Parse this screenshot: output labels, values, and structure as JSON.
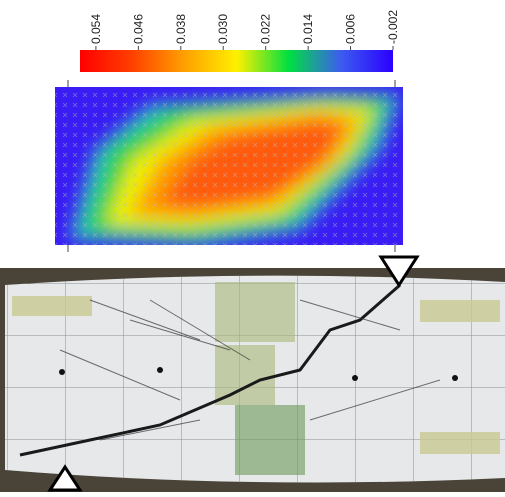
{
  "chart_data": {
    "type": "heatmap",
    "clim": [
      -0.002,
      0.057
    ],
    "colorbar_ticks": [
      0.054,
      0.046,
      0.038,
      {
        "value": 0.03,
        "label": "0.030"
      },
      0.022,
      0.014,
      0.006,
      -0.002
    ],
    "colormap": [
      "#2a00ff",
      "#3c5cf0",
      "#00e040",
      "#fff000",
      "#ffa000",
      "#ff4000",
      "#ff0000"
    ]
  }
}
